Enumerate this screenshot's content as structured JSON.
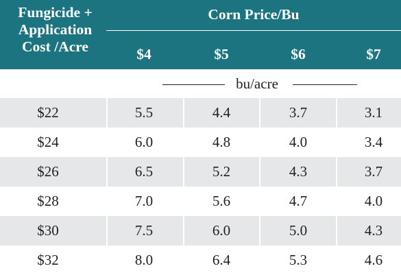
{
  "header": {
    "row_header_label": [
      "Fungicide +",
      "Application",
      "Cost /Acre"
    ],
    "group_title": "Corn Price/Bu",
    "prices": [
      "$4",
      "$5",
      "$6",
      "$7"
    ]
  },
  "units": "bu/acre",
  "rows": [
    {
      "cost": "$22",
      "values": [
        "5.5",
        "4.4",
        "3.7",
        "3.1"
      ]
    },
    {
      "cost": "$24",
      "values": [
        "6.0",
        "4.8",
        "4.0",
        "3.4"
      ]
    },
    {
      "cost": "$26",
      "values": [
        "6.5",
        "5.2",
        "4.3",
        "3.7"
      ]
    },
    {
      "cost": "$28",
      "values": [
        "7.0",
        "5.6",
        "4.7",
        "4.0"
      ]
    },
    {
      "cost": "$30",
      "values": [
        "7.5",
        "6.0",
        "5.0",
        "4.3"
      ]
    },
    {
      "cost": "$32",
      "values": [
        "8.0",
        "6.4",
        "5.3",
        "4.6"
      ]
    }
  ],
  "colors": {
    "header_background": "#1b7480",
    "header_text": "#ffffff",
    "shaded_row": "#e6e7e8",
    "body_text": "#231f20"
  }
}
